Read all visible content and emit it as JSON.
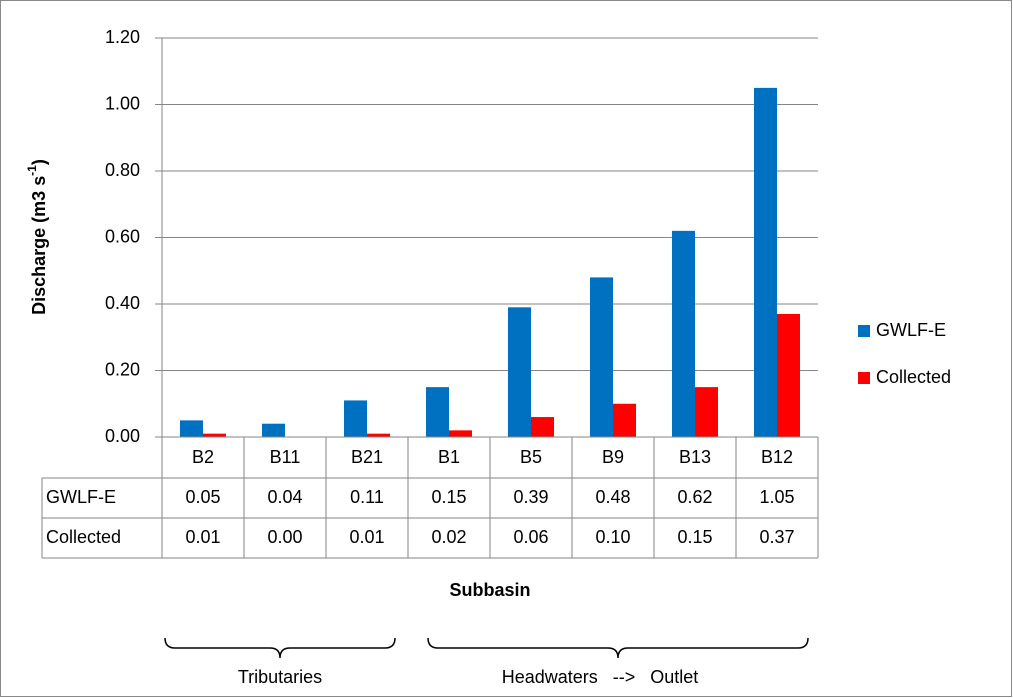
{
  "chart_data": {
    "type": "bar",
    "y_label_parts": [
      "Discharge (m3 s",
      "-1",
      ")"
    ],
    "x_label": "Subbasin",
    "categories": [
      "B2",
      "B11",
      "B21",
      "B1",
      "B5",
      "B9",
      "B13",
      "B12"
    ],
    "series": [
      {
        "name": "GWLF-E",
        "color": "#0070c0",
        "values": [
          0.05,
          0.04,
          0.11,
          0.15,
          0.39,
          0.48,
          0.62,
          1.05
        ],
        "value_labels": [
          "0.05",
          "0.04",
          "0.11",
          "0.15",
          "0.39",
          "0.48",
          "0.62",
          "1.05"
        ]
      },
      {
        "name": "Collected",
        "color": "#ff0000",
        "values": [
          0.01,
          0,
          0.01,
          0.02,
          0.06,
          0.1,
          0.15,
          0.37
        ],
        "value_labels": [
          "0.01",
          "0.00",
          "0.01",
          "0.02",
          "0.06",
          "0.10",
          "0.15",
          "0.37"
        ]
      }
    ],
    "ylim": [
      0,
      1.2
    ],
    "yticks": [
      {
        "value": 0,
        "label": "0.00"
      },
      {
        "value": 0.2,
        "label": "0.20"
      },
      {
        "value": 0.4,
        "label": "0.40"
      },
      {
        "value": 0.6,
        "label": "0.60"
      },
      {
        "value": 0.8,
        "label": "0.80"
      },
      {
        "value": 1,
        "label": "1.00"
      },
      {
        "value": 1.2,
        "label": "1.20"
      }
    ],
    "grid": true,
    "legend": "right",
    "annotations": [
      "Tributaries",
      "Headwaters   -->   Outlet"
    ]
  }
}
